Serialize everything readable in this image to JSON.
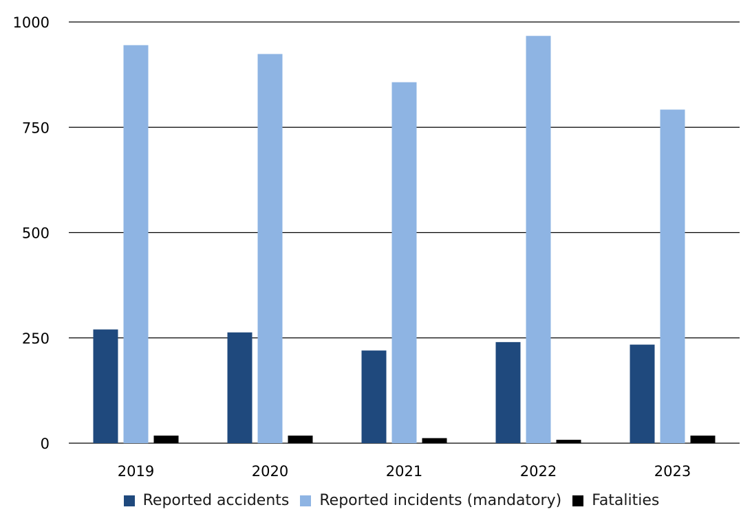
{
  "chart_data": {
    "type": "bar",
    "categories": [
      "2019",
      "2020",
      "2021",
      "2022",
      "2023"
    ],
    "series": [
      {
        "name": "Reported accidents",
        "color": "#1f497d",
        "values": [
          270,
          263,
          220,
          240,
          234
        ]
      },
      {
        "name": "Reported incidents (mandatory)",
        "color": "#8eb4e3",
        "values": [
          945,
          924,
          857,
          967,
          792
        ]
      },
      {
        "name": "Fatalities",
        "color": "#000000",
        "values": [
          18,
          18,
          12,
          8,
          18
        ]
      }
    ],
    "yticks": [
      "0",
      "250",
      "500",
      "750",
      "1000"
    ],
    "ylim": [
      0,
      1000
    ],
    "grid": true,
    "legend_position": "bottom"
  }
}
